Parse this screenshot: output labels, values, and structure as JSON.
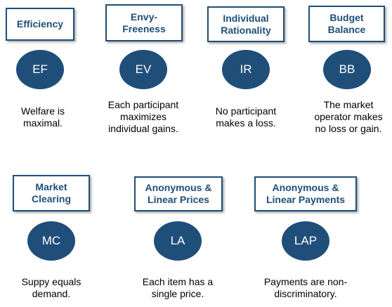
{
  "colors": {
    "accent": "#1f4e79",
    "background": "#ffffff",
    "text": "#000000"
  },
  "properties": [
    {
      "title": "Efficiency",
      "abbr": "EF",
      "description": "Welfare is\nmaximal."
    },
    {
      "title": "Envy-\nFreeness",
      "abbr": "EV",
      "description": "Each participant\nmaximizes\nindividual gains."
    },
    {
      "title": "Individual\nRationality",
      "abbr": "IR",
      "description": "No participant\nmakes a loss."
    },
    {
      "title": "Budget\nBalance",
      "abbr": "BB",
      "description": "The market\noperator makes\nno loss or gain."
    },
    {
      "title": "Market\nClearing",
      "abbr": "MC",
      "description": "Suppy equals\ndemand."
    },
    {
      "title": "Anonymous &\nLinear Prices",
      "abbr": "LA",
      "description": "Each item has a\nsingle price."
    },
    {
      "title": "Anonymous &\nLinear Payments",
      "abbr": "LAP",
      "description": "Payments are non-\ndiscriminatory."
    }
  ]
}
